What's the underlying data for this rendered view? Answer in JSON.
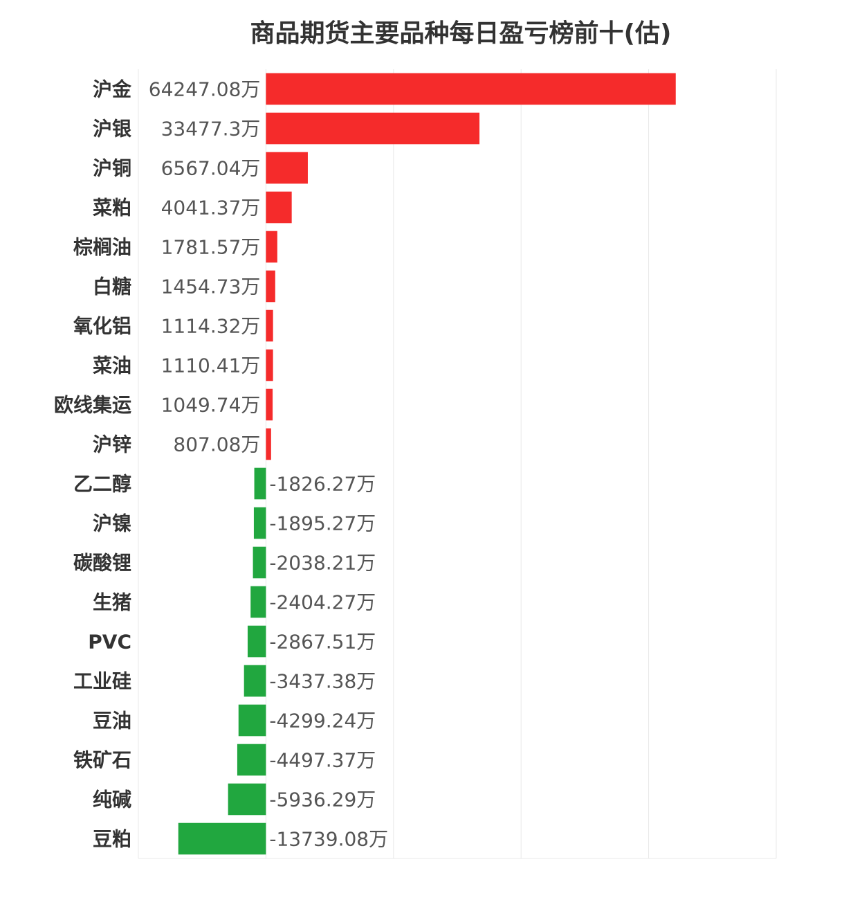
{
  "chart_data": {
    "type": "bar",
    "orientation": "horizontal",
    "title": "商品期货主要品种每日盈亏榜前十(估)",
    "unit": "万",
    "categories": [
      "沪金",
      "沪银",
      "沪铜",
      "菜粕",
      "棕榈油",
      "白糖",
      "氧化铝",
      "菜油",
      "欧线集运",
      "沪锌",
      "乙二醇",
      "沪镍",
      "碳酸锂",
      "生猪",
      "PVC",
      "工业硅",
      "豆油",
      "铁矿石",
      "纯碱",
      "豆粕"
    ],
    "values": [
      64247.08,
      33477.3,
      6567.04,
      4041.37,
      1781.57,
      1454.73,
      1114.32,
      1110.41,
      1049.74,
      807.08,
      -1826.27,
      -1895.27,
      -2038.21,
      -2404.27,
      -2867.51,
      -3437.38,
      -4299.24,
      -4497.37,
      -5936.29,
      -13739.08
    ],
    "labels": [
      "64247.08万",
      "33477.3万",
      "6567.04万",
      "4041.37万",
      "1781.57万",
      "1454.73万",
      "1114.32万",
      "1110.41万",
      "1049.74万",
      "807.08万",
      "-1826.27万",
      "-1895.27万",
      "-2038.21万",
      "-2404.27万",
      "-2867.51万",
      "-3437.38万",
      "-4299.24万",
      "-4497.37万",
      "-5936.29万",
      "-13739.08万"
    ],
    "xlim": [
      -20000,
      80000
    ],
    "xticks": [
      -20000,
      0,
      20000,
      40000,
      60000,
      80000
    ],
    "grid": true,
    "colors": {
      "positive": "#f52b2b",
      "negative": "#21a73f"
    }
  }
}
